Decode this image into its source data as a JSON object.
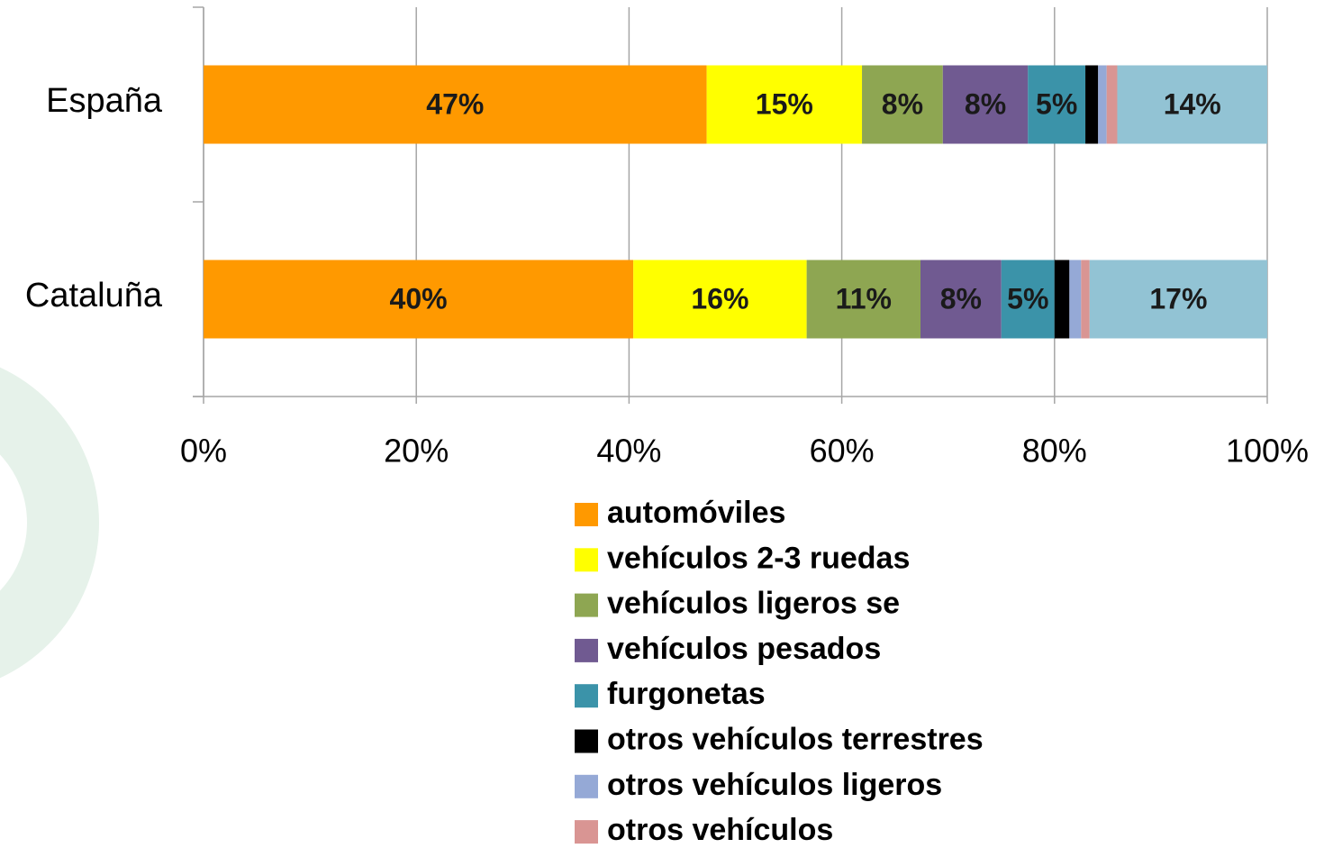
{
  "chart_data": {
    "type": "stacked-bar-horizontal",
    "categories": [
      "España",
      "Cataluña"
    ],
    "series": [
      {
        "name": "automóviles",
        "color": "#ff9900",
        "values": [
          47.3,
          40.4
        ],
        "value_labels": [
          "47%",
          "40%"
        ]
      },
      {
        "name": "vehículos 2-3 ruedas",
        "color": "#ffff00",
        "values": [
          14.6,
          16.3
        ],
        "value_labels": [
          "15%",
          "16%"
        ]
      },
      {
        "name": "vehículos ligeros se",
        "color": "#8ea652",
        "values": [
          7.6,
          10.7
        ],
        "value_labels": [
          "8%",
          "11%"
        ]
      },
      {
        "name": "vehículos pesados",
        "color": "#705a91",
        "values": [
          8.0,
          7.6
        ],
        "value_labels": [
          "8%",
          "8%"
        ]
      },
      {
        "name": "furgonetas",
        "color": "#3b93a9",
        "values": [
          5.4,
          5.0
        ],
        "value_labels": [
          "5%",
          "5%"
        ]
      },
      {
        "name": "otros vehículos terrestres",
        "color": "#000000",
        "values": [
          1.2,
          1.4
        ],
        "value_labels": [
          null,
          null
        ]
      },
      {
        "name": "otros vehículos ligeros",
        "color": "#95a9d6",
        "values": [
          0.8,
          1.1
        ],
        "value_labels": [
          null,
          null
        ]
      },
      {
        "name": "otros vehículos",
        "color": "#d99593",
        "values": [
          1.0,
          0.8
        ],
        "value_labels": [
          null,
          null
        ]
      },
      {
        "color": "#92c3d4",
        "values": [
          14.1,
          16.7
        ],
        "value_labels": [
          "14%",
          "17%"
        ]
      }
    ],
    "xlim": [
      0,
      100
    ],
    "xticks": [
      {
        "value": 0,
        "label": "0%"
      },
      {
        "value": 20,
        "label": "20%"
      },
      {
        "value": 40,
        "label": "40%"
      },
      {
        "value": 60,
        "label": "60%"
      },
      {
        "value": 80,
        "label": "80%"
      },
      {
        "value": 100,
        "label": "100%"
      }
    ],
    "grid": true
  }
}
